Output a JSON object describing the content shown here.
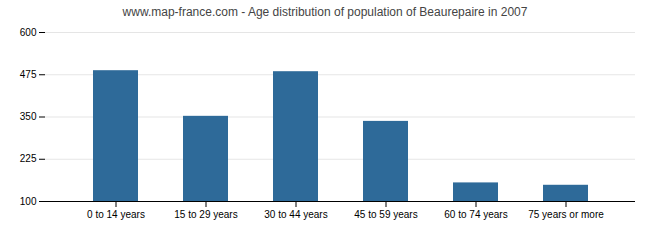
{
  "chart_data": {
    "type": "bar",
    "title": "www.map-france.com - Age distribution of population of Beaurepaire in 2007",
    "categories": [
      "0 to 14 years",
      "15 to 29 years",
      "30 to 44 years",
      "45 to 59 years",
      "60 to 74 years",
      "75 years or more"
    ],
    "values": [
      487,
      352,
      484,
      337,
      155,
      148
    ],
    "color": "#2e6a99",
    "ylim": [
      100,
      600
    ],
    "yticks": [
      100,
      225,
      350,
      475,
      600
    ],
    "grid": true
  }
}
